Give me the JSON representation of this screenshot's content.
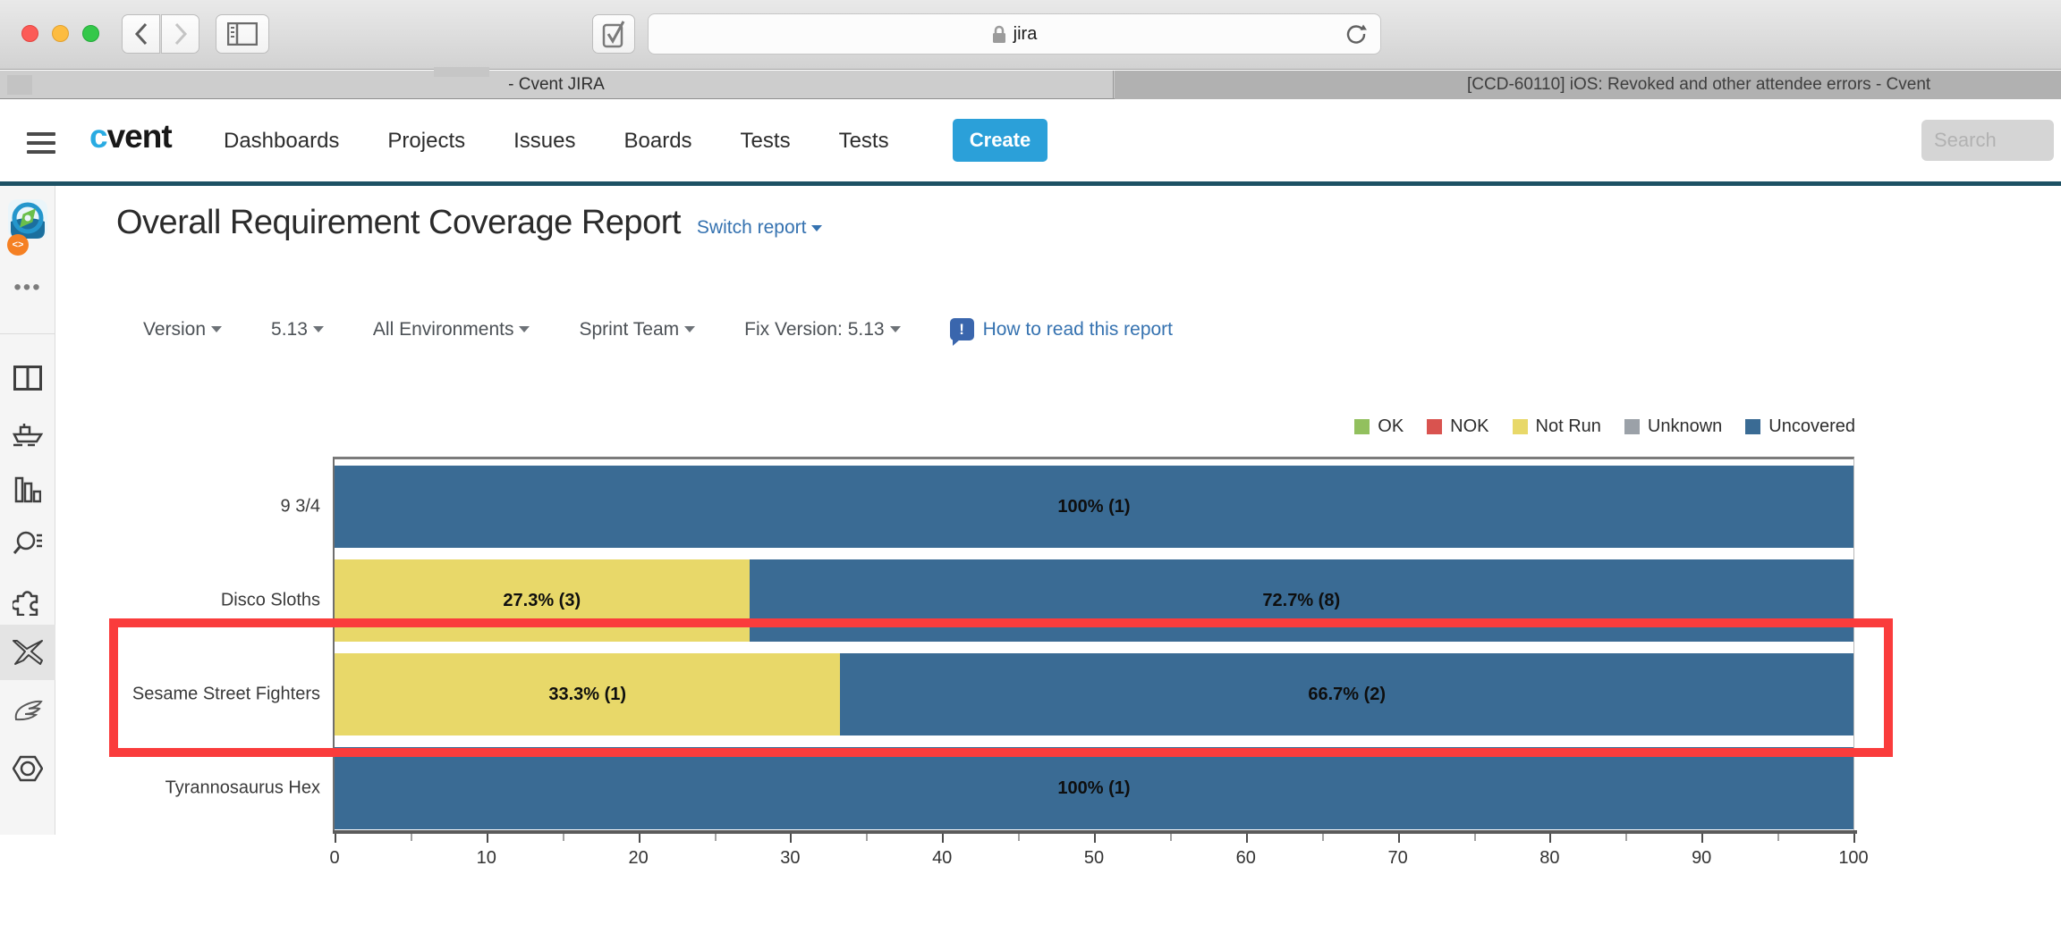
{
  "browser": {
    "url_text": "jira",
    "tabs": [
      {
        "title": "- Cvent JIRA",
        "active": true
      },
      {
        "title": "[CCD-60110] iOS: Revoked and other attendee errors - Cvent",
        "active": false
      }
    ]
  },
  "nav": {
    "logo_c": "c",
    "logo_rest": "vent",
    "items": [
      "Dashboards",
      "Projects",
      "Issues",
      "Boards",
      "Tests",
      "Tests"
    ],
    "create_label": "Create",
    "search_placeholder": "Search"
  },
  "sidebar": {
    "icons": [
      "app-compass-logo",
      "code-badge",
      "more-ellipsis",
      "split-panel",
      "ship",
      "bar-chart",
      "search-list",
      "puzzle",
      "xray-x",
      "wing",
      "hex-nut"
    ]
  },
  "report": {
    "title": "Overall Requirement Coverage Report",
    "switch_label": "Switch report",
    "filters": [
      "Version",
      "5.13",
      "All Environments",
      "Sprint Team",
      "Fix Version: 5.13"
    ],
    "help_label": "How to read this report"
  },
  "chart_data": {
    "type": "bar",
    "stacked": true,
    "orientation": "horizontal",
    "title": "",
    "xlabel": "",
    "ylabel": "",
    "xlim": [
      0,
      100
    ],
    "x_tick_major": 10,
    "x_tick_minor": 5,
    "grid": false,
    "legend_position": "top-right",
    "legend": [
      {
        "label": "OK",
        "color": "#92c05e"
      },
      {
        "label": "NOK",
        "color": "#d9534f"
      },
      {
        "label": "Not Run",
        "color": "#e8d869"
      },
      {
        "label": "Unknown",
        "color": "#9ba1a8"
      },
      {
        "label": "Uncovered",
        "color": "#3a6b94"
      }
    ],
    "categories": [
      "9 3/4",
      "Disco Sloths",
      "Sesame Street Fighters",
      "Tyrannosaurus Hex"
    ],
    "rows": [
      {
        "category": "9 3/4",
        "segments": [
          {
            "status": "Uncovered",
            "pct": 100,
            "count": 1,
            "label": "100% (1)"
          }
        ]
      },
      {
        "category": "Disco Sloths",
        "segments": [
          {
            "status": "Not Run",
            "pct": 27.3,
            "count": 3,
            "label": "27.3% (3)"
          },
          {
            "status": "Uncovered",
            "pct": 72.7,
            "count": 8,
            "label": "72.7% (8)"
          }
        ]
      },
      {
        "category": "Sesame Street Fighters",
        "segments": [
          {
            "status": "Not Run",
            "pct": 33.3,
            "count": 1,
            "label": "33.3% (1)"
          },
          {
            "status": "Uncovered",
            "pct": 66.7,
            "count": 2,
            "label": "66.7% (2)"
          }
        ]
      },
      {
        "category": "Tyrannosaurus Hex",
        "segments": [
          {
            "status": "Uncovered",
            "pct": 100,
            "count": 1,
            "label": "100% (1)"
          }
        ]
      }
    ]
  },
  "annotation": {
    "shape": "rectangle",
    "color": "#fa3c3c",
    "highlights": "Sesame Street Fighters"
  }
}
